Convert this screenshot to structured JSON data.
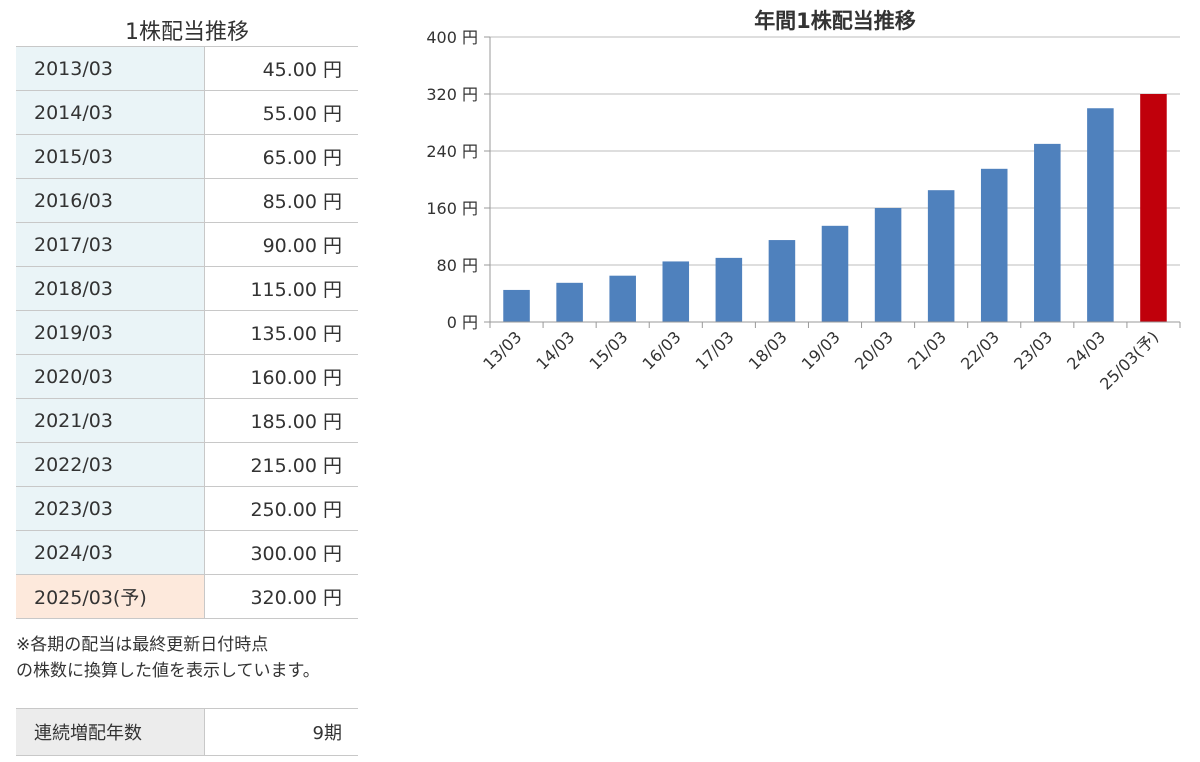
{
  "table": {
    "title": "1株配当推移",
    "rows": [
      {
        "period": "2013/03",
        "amount": "45.00 円"
      },
      {
        "period": "2014/03",
        "amount": "55.00 円"
      },
      {
        "period": "2015/03",
        "amount": "65.00 円"
      },
      {
        "period": "2016/03",
        "amount": "85.00 円"
      },
      {
        "period": "2017/03",
        "amount": "90.00 円"
      },
      {
        "period": "2018/03",
        "amount": "115.00 円"
      },
      {
        "period": "2019/03",
        "amount": "135.00 円"
      },
      {
        "period": "2020/03",
        "amount": "160.00 円"
      },
      {
        "period": "2021/03",
        "amount": "185.00 円"
      },
      {
        "period": "2022/03",
        "amount": "215.00 円"
      },
      {
        "period": "2023/03",
        "amount": "250.00 円"
      },
      {
        "period": "2024/03",
        "amount": "300.00 円"
      },
      {
        "period": "2025/03(予)",
        "amount": "320.00 円"
      }
    ]
  },
  "note": {
    "line1": "※各期の配当は最終更新日付時点",
    "line2": "の株数に換算した値を表示しています。"
  },
  "streak": {
    "label": "連続増配年数",
    "value": "9期"
  },
  "colors": {
    "actual_bar": "#4f81bd",
    "forecast_bar": "#c0000b",
    "period_cell_bg": "#eaf4f7",
    "forecast_cell_bg": "#fde9dc"
  },
  "chart_data": {
    "type": "bar",
    "title": "年間1株配当推移",
    "categories": [
      "13/03",
      "14/03",
      "15/03",
      "16/03",
      "17/03",
      "18/03",
      "19/03",
      "20/03",
      "21/03",
      "22/03",
      "23/03",
      "24/03",
      "25/03(予)"
    ],
    "values": [
      45,
      55,
      65,
      85,
      90,
      115,
      135,
      160,
      185,
      215,
      250,
      300,
      320
    ],
    "forecast_index": 12,
    "y_ticks": [
      "0 円",
      "80 円",
      "160 円",
      "240 円",
      "320 円",
      "400 円"
    ],
    "ylim": [
      0,
      400
    ],
    "grid": true,
    "xlabel": "",
    "ylabel": ""
  }
}
